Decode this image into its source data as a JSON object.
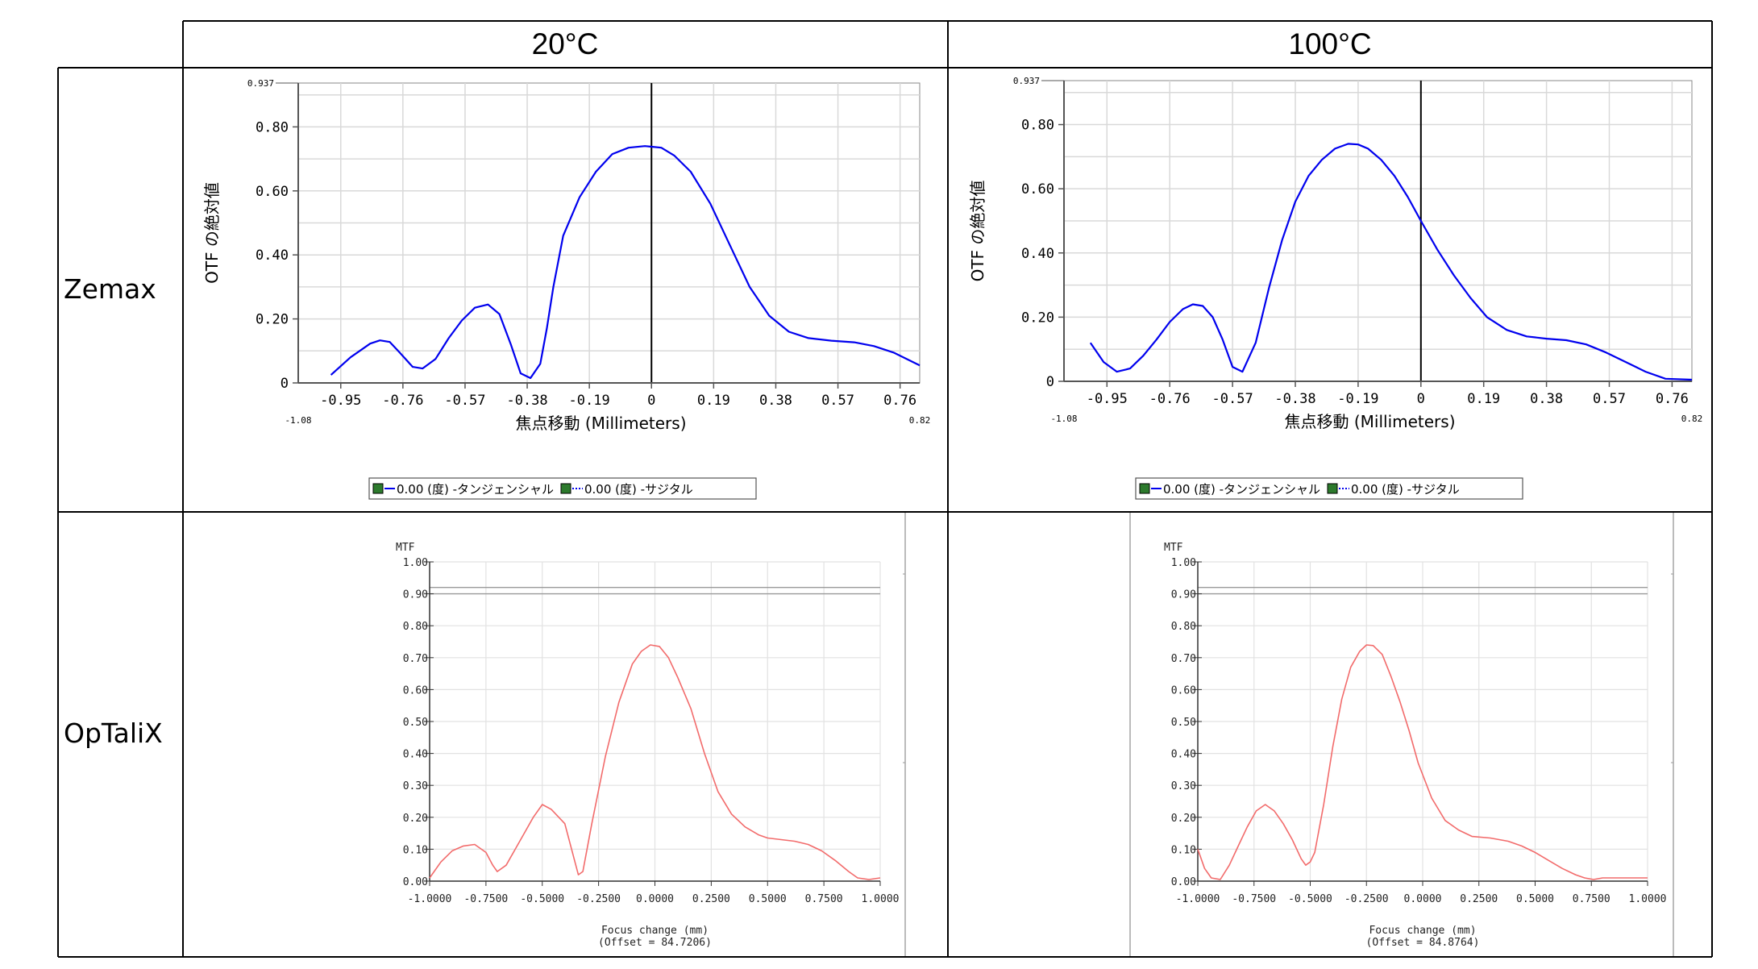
{
  "table": {
    "col_headers": [
      "20°C",
      "100°C"
    ],
    "row_headers": [
      "Zemax",
      "OpTaliX"
    ]
  },
  "colors": {
    "zemax_line": "#0000ee",
    "optalix_line": "#f26b6b",
    "grid": "#d9d9d9"
  },
  "zemax": {
    "ylabel": "OTF の絶対値",
    "xlabel": "焦点移動 (Millimeters)",
    "y_top_label": "0.937",
    "x_min_label": "-1.08",
    "x_max_label": "0.82",
    "legend": [
      {
        "marker": "■",
        "line": "—",
        "text": "0.00 (度) -タンジェンシャル"
      },
      {
        "marker": "■",
        "line": "···",
        "text": "0.00 (度) -サジタル"
      }
    ]
  },
  "optalix": {
    "ylabel": "MTF",
    "xlabel": "Focus change (mm)"
  },
  "chart_data": [
    {
      "type": "line",
      "panel": "Zemax 20°C",
      "xlabel": "焦点移動 (Millimeters)",
      "ylabel": "OTF の絶対値",
      "xlim": [
        -1.08,
        0.82
      ],
      "ylim": [
        0,
        0.937
      ],
      "xticks": [
        "-0.95",
        "-0.76",
        "-0.57",
        "-0.38",
        "-0.19",
        "0",
        "0.19",
        "0.38",
        "0.57",
        "0.76"
      ],
      "yticks": [
        "0",
        "0.20",
        "0.40",
        "0.60",
        "0.80"
      ],
      "series": [
        {
          "name": "0.00 (度) -タンジェンシャル",
          "x": [
            -0.98,
            -0.92,
            -0.86,
            -0.83,
            -0.8,
            -0.77,
            -0.73,
            -0.7,
            -0.66,
            -0.62,
            -0.58,
            -0.54,
            -0.5,
            -0.465,
            -0.43,
            -0.4,
            -0.37,
            -0.34,
            -0.32,
            -0.3,
            -0.27,
            -0.22,
            -0.17,
            -0.12,
            -0.07,
            -0.02,
            0.0,
            0.03,
            0.07,
            0.12,
            0.18,
            0.24,
            0.3,
            0.36,
            0.42,
            0.48,
            0.55,
            0.62,
            0.68,
            0.74,
            0.82
          ],
          "y": [
            0.025,
            0.08,
            0.123,
            0.133,
            0.128,
            0.095,
            0.05,
            0.045,
            0.075,
            0.14,
            0.195,
            0.235,
            0.245,
            0.215,
            0.12,
            0.03,
            0.015,
            0.06,
            0.17,
            0.3,
            0.46,
            0.58,
            0.66,
            0.715,
            0.735,
            0.74,
            0.738,
            0.735,
            0.71,
            0.66,
            0.56,
            0.43,
            0.3,
            0.21,
            0.16,
            0.14,
            0.132,
            0.127,
            0.115,
            0.095,
            0.055
          ]
        }
      ]
    },
    {
      "type": "line",
      "panel": "Zemax 100°C",
      "xlabel": "焦点移動 (Millimeters)",
      "ylabel": "OTF の絶対値",
      "xlim": [
        -1.08,
        0.82
      ],
      "ylim": [
        0,
        0.937
      ],
      "xticks": [
        "-0.95",
        "-0.76",
        "-0.57",
        "-0.38",
        "-0.19",
        "0",
        "0.19",
        "0.38",
        "0.57",
        "0.76"
      ],
      "yticks": [
        "0",
        "0.20",
        "0.40",
        "0.60",
        "0.80"
      ],
      "series": [
        {
          "name": "0.00 (度) -タンジェンシャル",
          "x": [
            -1.0,
            -0.96,
            -0.92,
            -0.88,
            -0.84,
            -0.8,
            -0.76,
            -0.72,
            -0.69,
            -0.66,
            -0.63,
            -0.6,
            -0.57,
            -0.54,
            -0.5,
            -0.46,
            -0.42,
            -0.38,
            -0.34,
            -0.3,
            -0.26,
            -0.22,
            -0.19,
            -0.16,
            -0.12,
            -0.08,
            -0.04,
            0.0,
            0.05,
            0.1,
            0.15,
            0.2,
            0.26,
            0.32,
            0.38,
            0.44,
            0.5,
            0.56,
            0.62,
            0.68,
            0.74,
            0.82
          ],
          "y": [
            0.12,
            0.06,
            0.03,
            0.04,
            0.08,
            0.13,
            0.185,
            0.225,
            0.24,
            0.235,
            0.2,
            0.13,
            0.045,
            0.03,
            0.12,
            0.29,
            0.44,
            0.56,
            0.64,
            0.69,
            0.725,
            0.74,
            0.738,
            0.725,
            0.69,
            0.64,
            0.575,
            0.5,
            0.41,
            0.33,
            0.26,
            0.2,
            0.16,
            0.14,
            0.133,
            0.128,
            0.115,
            0.09,
            0.06,
            0.03,
            0.008,
            0.005
          ]
        }
      ]
    },
    {
      "type": "line",
      "panel": "OpTaliX 20°C",
      "xlabel": "Focus change (mm)",
      "ylabel": "MTF",
      "offset_label": "(Offset = 84.7206)",
      "xlim": [
        -1.0,
        1.0
      ],
      "ylim": [
        0,
        1.0
      ],
      "xticks": [
        "-1.0000",
        "-0.7500",
        "-0.5000",
        "-0.2500",
        "0.0000",
        "0.2500",
        "0.5000",
        "0.7500",
        "1.0000"
      ],
      "yticks": [
        "0.00",
        "0.10",
        "0.20",
        "0.30",
        "0.40",
        "0.50",
        "0.60",
        "0.70",
        "0.80",
        "0.90",
        "1.00"
      ],
      "series": [
        {
          "x": [
            -1.0,
            -0.95,
            -0.9,
            -0.85,
            -0.8,
            -0.75,
            -0.72,
            -0.7,
            -0.66,
            -0.62,
            -0.58,
            -0.54,
            -0.5,
            -0.46,
            -0.4,
            -0.34,
            -0.32,
            -0.28,
            -0.22,
            -0.16,
            -0.1,
            -0.06,
            -0.02,
            0.02,
            0.06,
            0.1,
            0.16,
            0.22,
            0.28,
            0.34,
            0.4,
            0.46,
            0.5,
            0.56,
            0.62,
            0.68,
            0.74,
            0.8,
            0.86,
            0.9,
            0.95,
            1.0
          ],
          "y": [
            0.01,
            0.06,
            0.095,
            0.11,
            0.115,
            0.09,
            0.05,
            0.03,
            0.05,
            0.1,
            0.15,
            0.2,
            0.24,
            0.225,
            0.18,
            0.02,
            0.03,
            0.18,
            0.39,
            0.56,
            0.68,
            0.72,
            0.74,
            0.735,
            0.7,
            0.64,
            0.54,
            0.4,
            0.28,
            0.21,
            0.17,
            0.145,
            0.135,
            0.13,
            0.125,
            0.115,
            0.095,
            0.065,
            0.03,
            0.01,
            0.005,
            0.01
          ]
        }
      ]
    },
    {
      "type": "line",
      "panel": "OpTaliX 100°C",
      "xlabel": "Focus change (mm)",
      "ylabel": "MTF",
      "offset_label": "(Offset = 84.8764)",
      "xlim": [
        -1.0,
        1.0
      ],
      "ylim": [
        0,
        1.0
      ],
      "xticks": [
        "-1.0000",
        "-0.7500",
        "-0.5000",
        "-0.2500",
        "0.0000",
        "0.2500",
        "0.5000",
        "0.7500",
        "1.0000"
      ],
      "yticks": [
        "0.00",
        "0.10",
        "0.20",
        "0.30",
        "0.40",
        "0.50",
        "0.60",
        "0.70",
        "0.80",
        "0.90",
        "1.00"
      ],
      "series": [
        {
          "x": [
            -1.0,
            -0.97,
            -0.94,
            -0.9,
            -0.86,
            -0.82,
            -0.78,
            -0.74,
            -0.7,
            -0.66,
            -0.62,
            -0.58,
            -0.54,
            -0.52,
            -0.5,
            -0.48,
            -0.44,
            -0.4,
            -0.36,
            -0.32,
            -0.28,
            -0.25,
            -0.22,
            -0.18,
            -0.14,
            -0.1,
            -0.06,
            -0.02,
            0.04,
            0.1,
            0.16,
            0.22,
            0.3,
            0.38,
            0.44,
            0.5,
            0.56,
            0.62,
            0.68,
            0.72,
            0.76,
            0.8,
            0.9,
            1.0
          ],
          "y": [
            0.1,
            0.04,
            0.01,
            0.005,
            0.05,
            0.11,
            0.17,
            0.22,
            0.24,
            0.22,
            0.18,
            0.13,
            0.07,
            0.05,
            0.06,
            0.09,
            0.24,
            0.42,
            0.57,
            0.67,
            0.72,
            0.74,
            0.738,
            0.71,
            0.64,
            0.56,
            0.47,
            0.37,
            0.26,
            0.19,
            0.16,
            0.14,
            0.135,
            0.125,
            0.11,
            0.09,
            0.065,
            0.04,
            0.02,
            0.01,
            0.005,
            0.01,
            0.01,
            0.01
          ]
        }
      ]
    }
  ]
}
